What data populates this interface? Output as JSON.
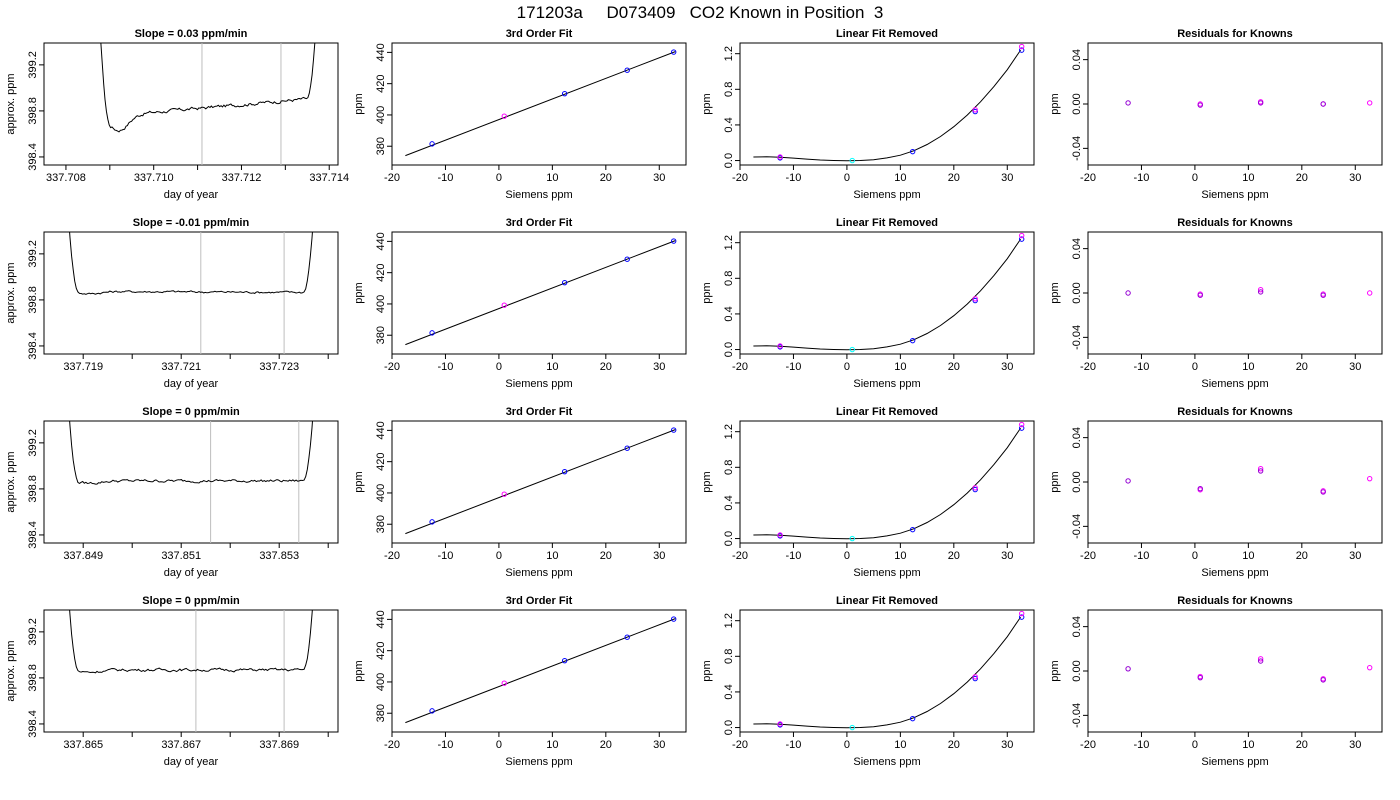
{
  "page_title": "171203a     D073409   CO2 Known in Position  3",
  "colors": {
    "line": "#000000",
    "gridline": "#bebebe",
    "point_blue": "#0000ff",
    "point_magenta": "#ff00ff",
    "point_cyan": "#00ffff",
    "point_purple": "#9400d3"
  },
  "labels": {
    "time_xlabel": "day of year",
    "time_ylabel": "approx. ppm",
    "fit_title": "3rd Order Fit",
    "fit_xlabel": "Siemens ppm",
    "fit_ylabel": "ppm",
    "lin_title": "Linear Fit Removed",
    "lin_xlabel": "Siemens ppm",
    "lin_ylabel": "ppm",
    "res_title": "Residuals for Knowns",
    "res_xlabel": "Siemens ppm",
    "res_ylabel": "ppm"
  },
  "chart_data": {
    "type": "grid",
    "rows": [
      {
        "time": {
          "title": "Slope =  0.03  ppm/min",
          "xlim": [
            337.7075,
            337.7142
          ],
          "xticks": [
            337.708,
            337.71,
            337.712,
            337.714
          ],
          "xtick_labels": [
            "337.708",
            "337.710",
            "337.712",
            "337.714"
          ],
          "xminor": [
            337.709,
            337.711,
            337.713
          ],
          "ylim": [
            398.33,
            399.39
          ],
          "yticks": [
            398.4,
            398.8,
            399.2
          ],
          "ytick_labels": [
            "398.4",
            "398.8",
            "399.2"
          ],
          "vlines": [
            337.7111,
            337.7129
          ],
          "trace": {
            "start": 337.7087,
            "end": 337.7138,
            "base": 398.83,
            "trend": 0.17,
            "dip": 0.13,
            "noise": 0.012
          }
        },
        "residuals": [
          0.001,
          0.0,
          -0.001,
          0.002,
          0.001,
          0.0,
          0.0,
          0.001
        ]
      },
      {
        "time": {
          "title": "Slope =  -0.01  ppm/min",
          "xlim": [
            337.7182,
            337.7242
          ],
          "xticks": [
            337.719,
            337.72,
            337.721,
            337.722,
            337.723,
            337.724
          ],
          "xtick_labels": [
            "337.719",
            "",
            "337.721",
            "",
            "337.723",
            ""
          ],
          "xminor": [],
          "ylim": [
            398.33,
            399.39
          ],
          "yticks": [
            398.4,
            398.8,
            399.2
          ],
          "ytick_labels": [
            "398.4",
            "398.8",
            "399.2"
          ],
          "vlines": [
            337.7214,
            337.7231
          ],
          "trace": {
            "start": 337.7186,
            "end": 337.7238,
            "base": 398.87,
            "trend": -0.01,
            "dip": 0.02,
            "noise": 0.008
          }
        },
        "residuals": [
          0.0,
          -0.001,
          -0.002,
          0.003,
          0.001,
          -0.001,
          -0.002,
          0.0
        ]
      },
      {
        "time": {
          "title": "Slope =  0  ppm/min",
          "xlim": [
            337.8482,
            337.8542
          ],
          "xticks": [
            337.849,
            337.85,
            337.851,
            337.852,
            337.853,
            337.854
          ],
          "xtick_labels": [
            "337.849",
            "",
            "337.851",
            "",
            "337.853",
            ""
          ],
          "xminor": [],
          "ylim": [
            398.33,
            399.39
          ],
          "yticks": [
            398.4,
            398.8,
            399.2
          ],
          "ytick_labels": [
            "398.4",
            "398.8",
            "399.2"
          ],
          "vlines": [
            337.8516,
            337.8534
          ],
          "trace": {
            "start": 337.8486,
            "end": 337.8538,
            "base": 398.87,
            "trend": 0.0,
            "dip": 0.02,
            "noise": 0.01
          }
        },
        "residuals": [
          0.001,
          -0.007,
          -0.006,
          0.012,
          0.01,
          -0.008,
          -0.009,
          0.003
        ]
      },
      {
        "time": {
          "title": "Slope =  0  ppm/min",
          "xlim": [
            337.8642,
            337.8702
          ],
          "xticks": [
            337.865,
            337.866,
            337.867,
            337.868,
            337.869,
            337.87
          ],
          "xtick_labels": [
            "337.865",
            "",
            "337.867",
            "",
            "337.869",
            ""
          ],
          "xminor": [],
          "ylim": [
            398.33,
            399.39
          ],
          "yticks": [
            398.4,
            398.8,
            399.2
          ],
          "ytick_labels": [
            "398.4",
            "398.8",
            "399.2"
          ],
          "vlines": [
            337.8673,
            337.8691
          ],
          "trace": {
            "start": 337.8646,
            "end": 337.8698,
            "base": 398.87,
            "trend": 0.0,
            "dip": 0.02,
            "noise": 0.01
          }
        },
        "residuals": [
          0.002,
          -0.005,
          -0.006,
          0.011,
          0.009,
          -0.007,
          -0.008,
          0.003
        ]
      }
    ],
    "fit": {
      "xlim": [
        -20,
        35
      ],
      "xticks": [
        -20,
        -10,
        0,
        10,
        20,
        30
      ],
      "xtick_labels": [
        "-20",
        "-10",
        "0",
        "10",
        "20",
        "30"
      ],
      "ylim": [
        368,
        446
      ],
      "yticks": [
        380,
        400,
        420,
        440
      ],
      "ytick_labels": [
        "380",
        "400",
        "420",
        "440"
      ],
      "line_x": [
        -17.5,
        33
      ],
      "line_y": [
        374,
        440.5
      ],
      "points": [
        {
          "x": -12.5,
          "y": 381.5,
          "color": "#0000ff"
        },
        {
          "x": 1,
          "y": 399.2,
          "color": "#ff00ff"
        },
        {
          "x": 12.3,
          "y": 413.6,
          "color": "#0000ff"
        },
        {
          "x": 24,
          "y": 428.6,
          "color": "#0000ff"
        },
        {
          "x": 32.7,
          "y": 440.2,
          "color": "#0000ff"
        }
      ]
    },
    "linfit": {
      "xlim": [
        -20,
        35
      ],
      "xticks": [
        -20,
        -10,
        0,
        10,
        20,
        30
      ],
      "xtick_labels": [
        "-20",
        "-10",
        "0",
        "10",
        "20",
        "30"
      ],
      "ylim": [
        -0.05,
        1.32
      ],
      "yticks": [
        0.0,
        0.4,
        0.8,
        1.2
      ],
      "ytick_labels": [
        "0.0",
        "0.4",
        "0.8",
        "1.2"
      ],
      "curve_x": [
        -17.5,
        -15,
        -12.5,
        -10,
        -7.5,
        -5,
        -2.5,
        0,
        2.5,
        5,
        7.5,
        10,
        12.5,
        15,
        17.5,
        20,
        22.5,
        25,
        27.5,
        30,
        32.5
      ],
      "curve_y": [
        0.04,
        0.042,
        0.038,
        0.028,
        0.016,
        0.006,
        0.0,
        -0.003,
        0.0,
        0.01,
        0.03,
        0.06,
        0.11,
        0.18,
        0.27,
        0.38,
        0.51,
        0.66,
        0.83,
        1.02,
        1.24
      ],
      "points": [
        {
          "x": -12.5,
          "y": 0.03,
          "color": "#0000ff"
        },
        {
          "x": -12.5,
          "y": 0.04,
          "color": "#ff00ff"
        },
        {
          "x": 1,
          "y": 0.0,
          "color": "#00ffff"
        },
        {
          "x": 12.3,
          "y": 0.1,
          "color": "#0000ff"
        },
        {
          "x": 24,
          "y": 0.55,
          "color": "#0000ff"
        },
        {
          "x": 24,
          "y": 0.57,
          "color": "#ff00ff"
        },
        {
          "x": 32.7,
          "y": 1.24,
          "color": "#0000ff"
        },
        {
          "x": 32.7,
          "y": 1.28,
          "color": "#ff00ff"
        }
      ]
    },
    "resid": {
      "xlim": [
        -20,
        35
      ],
      "xticks": [
        -20,
        -10,
        0,
        10,
        20,
        30
      ],
      "xtick_labels": [
        "-20",
        "-10",
        "0",
        "10",
        "20",
        "30"
      ],
      "ylim": [
        -0.055,
        0.055
      ],
      "yticks": [
        -0.04,
        0.0,
        0.04
      ],
      "ytick_labels": [
        "-0.04",
        "0.00",
        "0.04"
      ],
      "x_positions": [
        -12.5,
        1,
        1,
        12.3,
        12.3,
        24,
        24,
        32.7
      ]
    }
  }
}
